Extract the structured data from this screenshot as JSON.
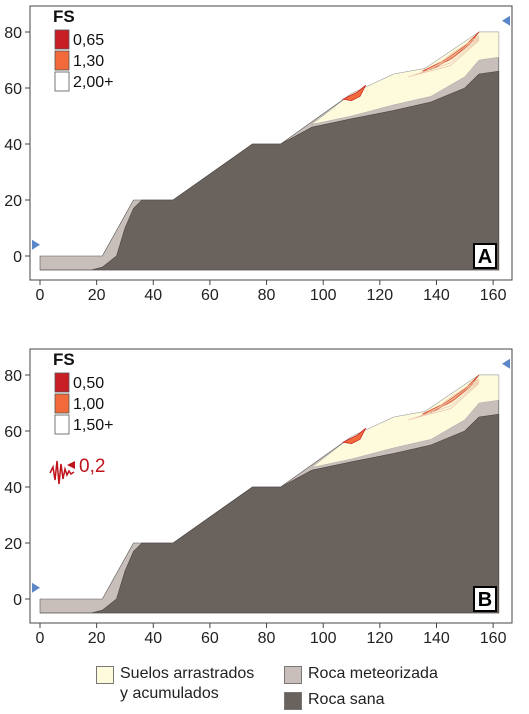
{
  "panels": [
    {
      "letter": "A",
      "fs_title": "FS",
      "fs_scale": [
        {
          "label": "0,65",
          "color": "#c81e26"
        },
        {
          "label": "1,30",
          "color": "#f26a3a"
        },
        {
          "label": "2,00+",
          "color": "#ffffff"
        }
      ],
      "x_ticks": [
        "0",
        "20",
        "40",
        "60",
        "80",
        "100",
        "120",
        "140",
        "160"
      ],
      "y_ticks": [
        "0",
        "20",
        "40",
        "60",
        "80"
      ],
      "seismic": null
    },
    {
      "letter": "B",
      "fs_title": "FS",
      "fs_scale": [
        {
          "label": "0,50",
          "color": "#c81e26"
        },
        {
          "label": "1,00",
          "color": "#f26a3a"
        },
        {
          "label": "1,50+",
          "color": "#ffffff"
        }
      ],
      "x_ticks": [
        "0",
        "20",
        "40",
        "60",
        "80",
        "100",
        "120",
        "140",
        "160"
      ],
      "y_ticks": [
        "0",
        "20",
        "40",
        "60",
        "80"
      ],
      "seismic": {
        "value": "0,2",
        "icon": "seismic-wave-icon"
      }
    }
  ],
  "legend": [
    {
      "label_lines": [
        "Suelos arrastrados",
        "y acumulados"
      ],
      "color": "#fdfbdc"
    },
    {
      "label_lines": [
        "Roca meteorizada"
      ],
      "color": "#c9bfba"
    },
    {
      "label_lines": [
        "Roca sana"
      ],
      "color": "#6a625d"
    }
  ],
  "colors": {
    "sound_rock": "#6a625d",
    "weathered_rock": "#c9bfba",
    "soil": "#fdfbdc",
    "arrow": "#5b86c7"
  },
  "geometry_data_units": {
    "x_range": [
      -2,
      163
    ],
    "y_range": [
      -5,
      85
    ],
    "ground_surface": [
      [
        0,
        -5
      ],
      [
        0,
        0
      ],
      [
        22,
        0
      ],
      [
        33,
        20
      ],
      [
        47,
        20
      ],
      [
        75,
        40
      ],
      [
        85,
        40
      ],
      [
        110,
        58
      ],
      [
        125,
        65
      ],
      [
        136,
        67
      ],
      [
        155,
        80
      ],
      [
        162,
        80
      ],
      [
        162,
        -5
      ]
    ],
    "weathered_rock_top": [
      [
        0,
        -5
      ],
      [
        0,
        -3
      ],
      [
        16,
        -3
      ],
      [
        20,
        -1
      ],
      [
        25,
        4
      ],
      [
        30,
        12
      ],
      [
        33,
        20
      ],
      [
        47,
        20
      ],
      [
        75,
        40
      ],
      [
        85,
        40
      ],
      [
        96,
        47
      ],
      [
        110,
        50
      ],
      [
        125,
        54
      ],
      [
        138,
        57
      ],
      [
        150,
        64
      ],
      [
        155,
        70
      ],
      [
        162,
        71
      ],
      [
        162,
        -5
      ]
    ],
    "sound_rock_top": [
      [
        0,
        -5
      ],
      [
        18,
        -5
      ],
      [
        22,
        -4
      ],
      [
        27,
        0
      ],
      [
        30,
        10
      ],
      [
        33,
        17
      ],
      [
        36,
        20
      ],
      [
        47,
        20
      ],
      [
        75,
        40
      ],
      [
        85,
        40
      ],
      [
        96,
        46
      ],
      [
        110,
        49
      ],
      [
        125,
        52
      ],
      [
        138,
        55
      ],
      [
        150,
        60
      ],
      [
        155,
        65
      ],
      [
        162,
        66
      ],
      [
        162,
        -5
      ]
    ],
    "soil_top": [
      [
        96,
        47
      ],
      [
        110,
        58
      ],
      [
        125,
        65
      ],
      [
        136,
        67
      ],
      [
        155,
        80
      ],
      [
        162,
        80
      ],
      [
        162,
        71
      ],
      [
        155,
        70
      ],
      [
        150,
        64
      ],
      [
        138,
        57
      ],
      [
        125,
        54
      ],
      [
        110,
        50
      ]
    ]
  }
}
